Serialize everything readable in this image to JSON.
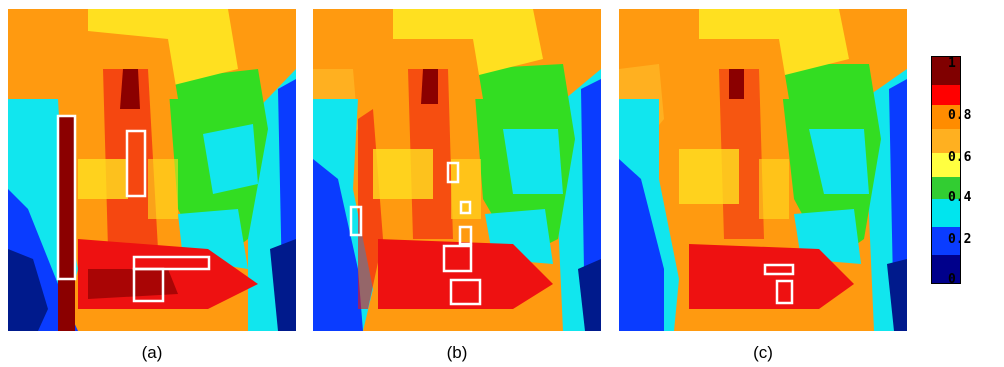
{
  "panels": [
    {
      "label": "(a)"
    },
    {
      "label": "(b)"
    },
    {
      "label": "(c)"
    }
  ],
  "colorbar": {
    "ticks": [
      "1",
      "0.8",
      "0.6",
      "0.4",
      "0.2",
      "0"
    ],
    "colors": [
      "#800000",
      "#ff0000",
      "#ff8c00",
      "#ffd700",
      "#ffff40",
      "#32cd32",
      "#00e5ee",
      "#0a3cff",
      "#00008b"
    ]
  },
  "colors": {
    "dark_red": "#8b0000",
    "red": "#ee1111",
    "orange": "#ff9a10",
    "light_orange": "#ffb020",
    "yellow": "#ffe020",
    "green": "#33dd22",
    "cyan": "#11e6ee",
    "blue": "#0a3cff",
    "navy": "#001a8c",
    "box": "#ffffff"
  }
}
